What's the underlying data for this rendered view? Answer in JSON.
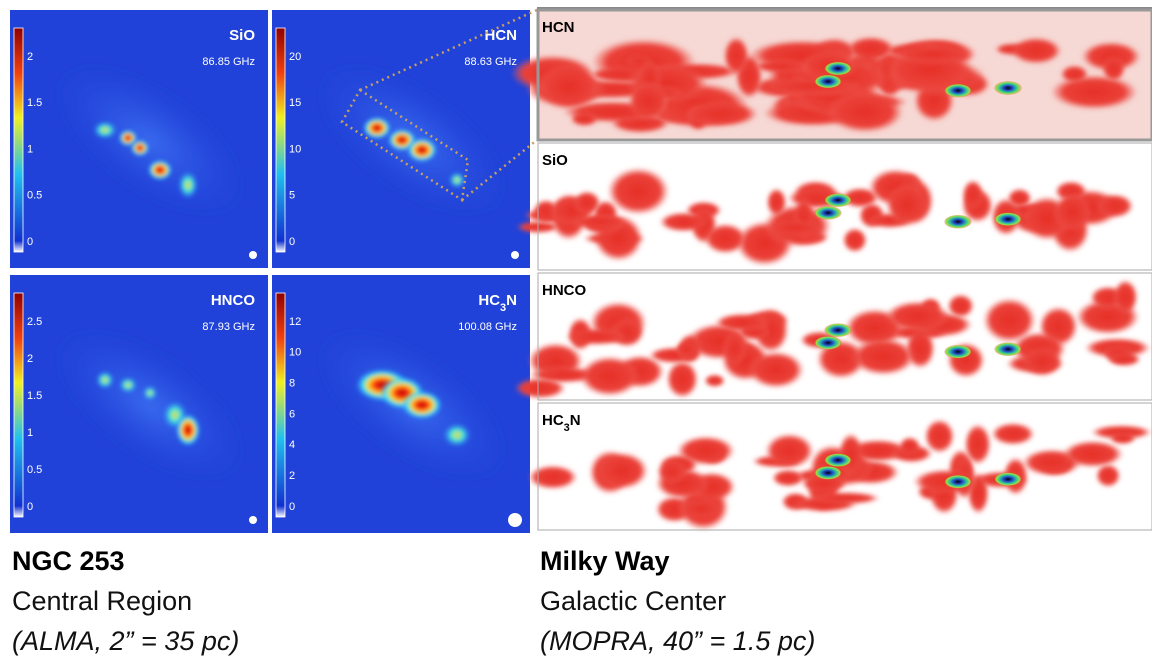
{
  "panels_left": [
    {
      "label": [
        "SiO"
      ],
      "freq": "86.85 GHz",
      "cbar_ticks": [
        "2",
        "1.5",
        "1",
        "0.5",
        "0"
      ]
    },
    {
      "label": [
        "HCN"
      ],
      "freq": "88.63 GHz",
      "cbar_ticks": [
        "20",
        "15",
        "10",
        "5",
        "0"
      ]
    },
    {
      "label": [
        "HNCO"
      ],
      "freq": "87.93 GHz",
      "cbar_ticks": [
        "2.5",
        "2",
        "1.5",
        "1",
        "0.5",
        "0"
      ]
    },
    {
      "label": [
        "HC",
        "3",
        "N"
      ],
      "freq": "100.08 GHz",
      "cbar_ticks": [
        "12",
        "10",
        "8",
        "6",
        "4",
        "2",
        "0"
      ]
    }
  ],
  "panels_right": [
    {
      "label": [
        "HCN"
      ]
    },
    {
      "label": [
        "SiO"
      ]
    },
    {
      "label": [
        "HNCO"
      ]
    },
    {
      "label": [
        "HC",
        "3",
        "N"
      ]
    }
  ],
  "captions": {
    "left": {
      "title": "NGC 253",
      "subtitle": "Central Region",
      "note": "(ALMA, 2” = 35 pc)"
    },
    "right": {
      "title": "Milky Way",
      "subtitle": "Galactic Center",
      "note": "(MOPRA, 40” = 1.5 pc)"
    }
  }
}
